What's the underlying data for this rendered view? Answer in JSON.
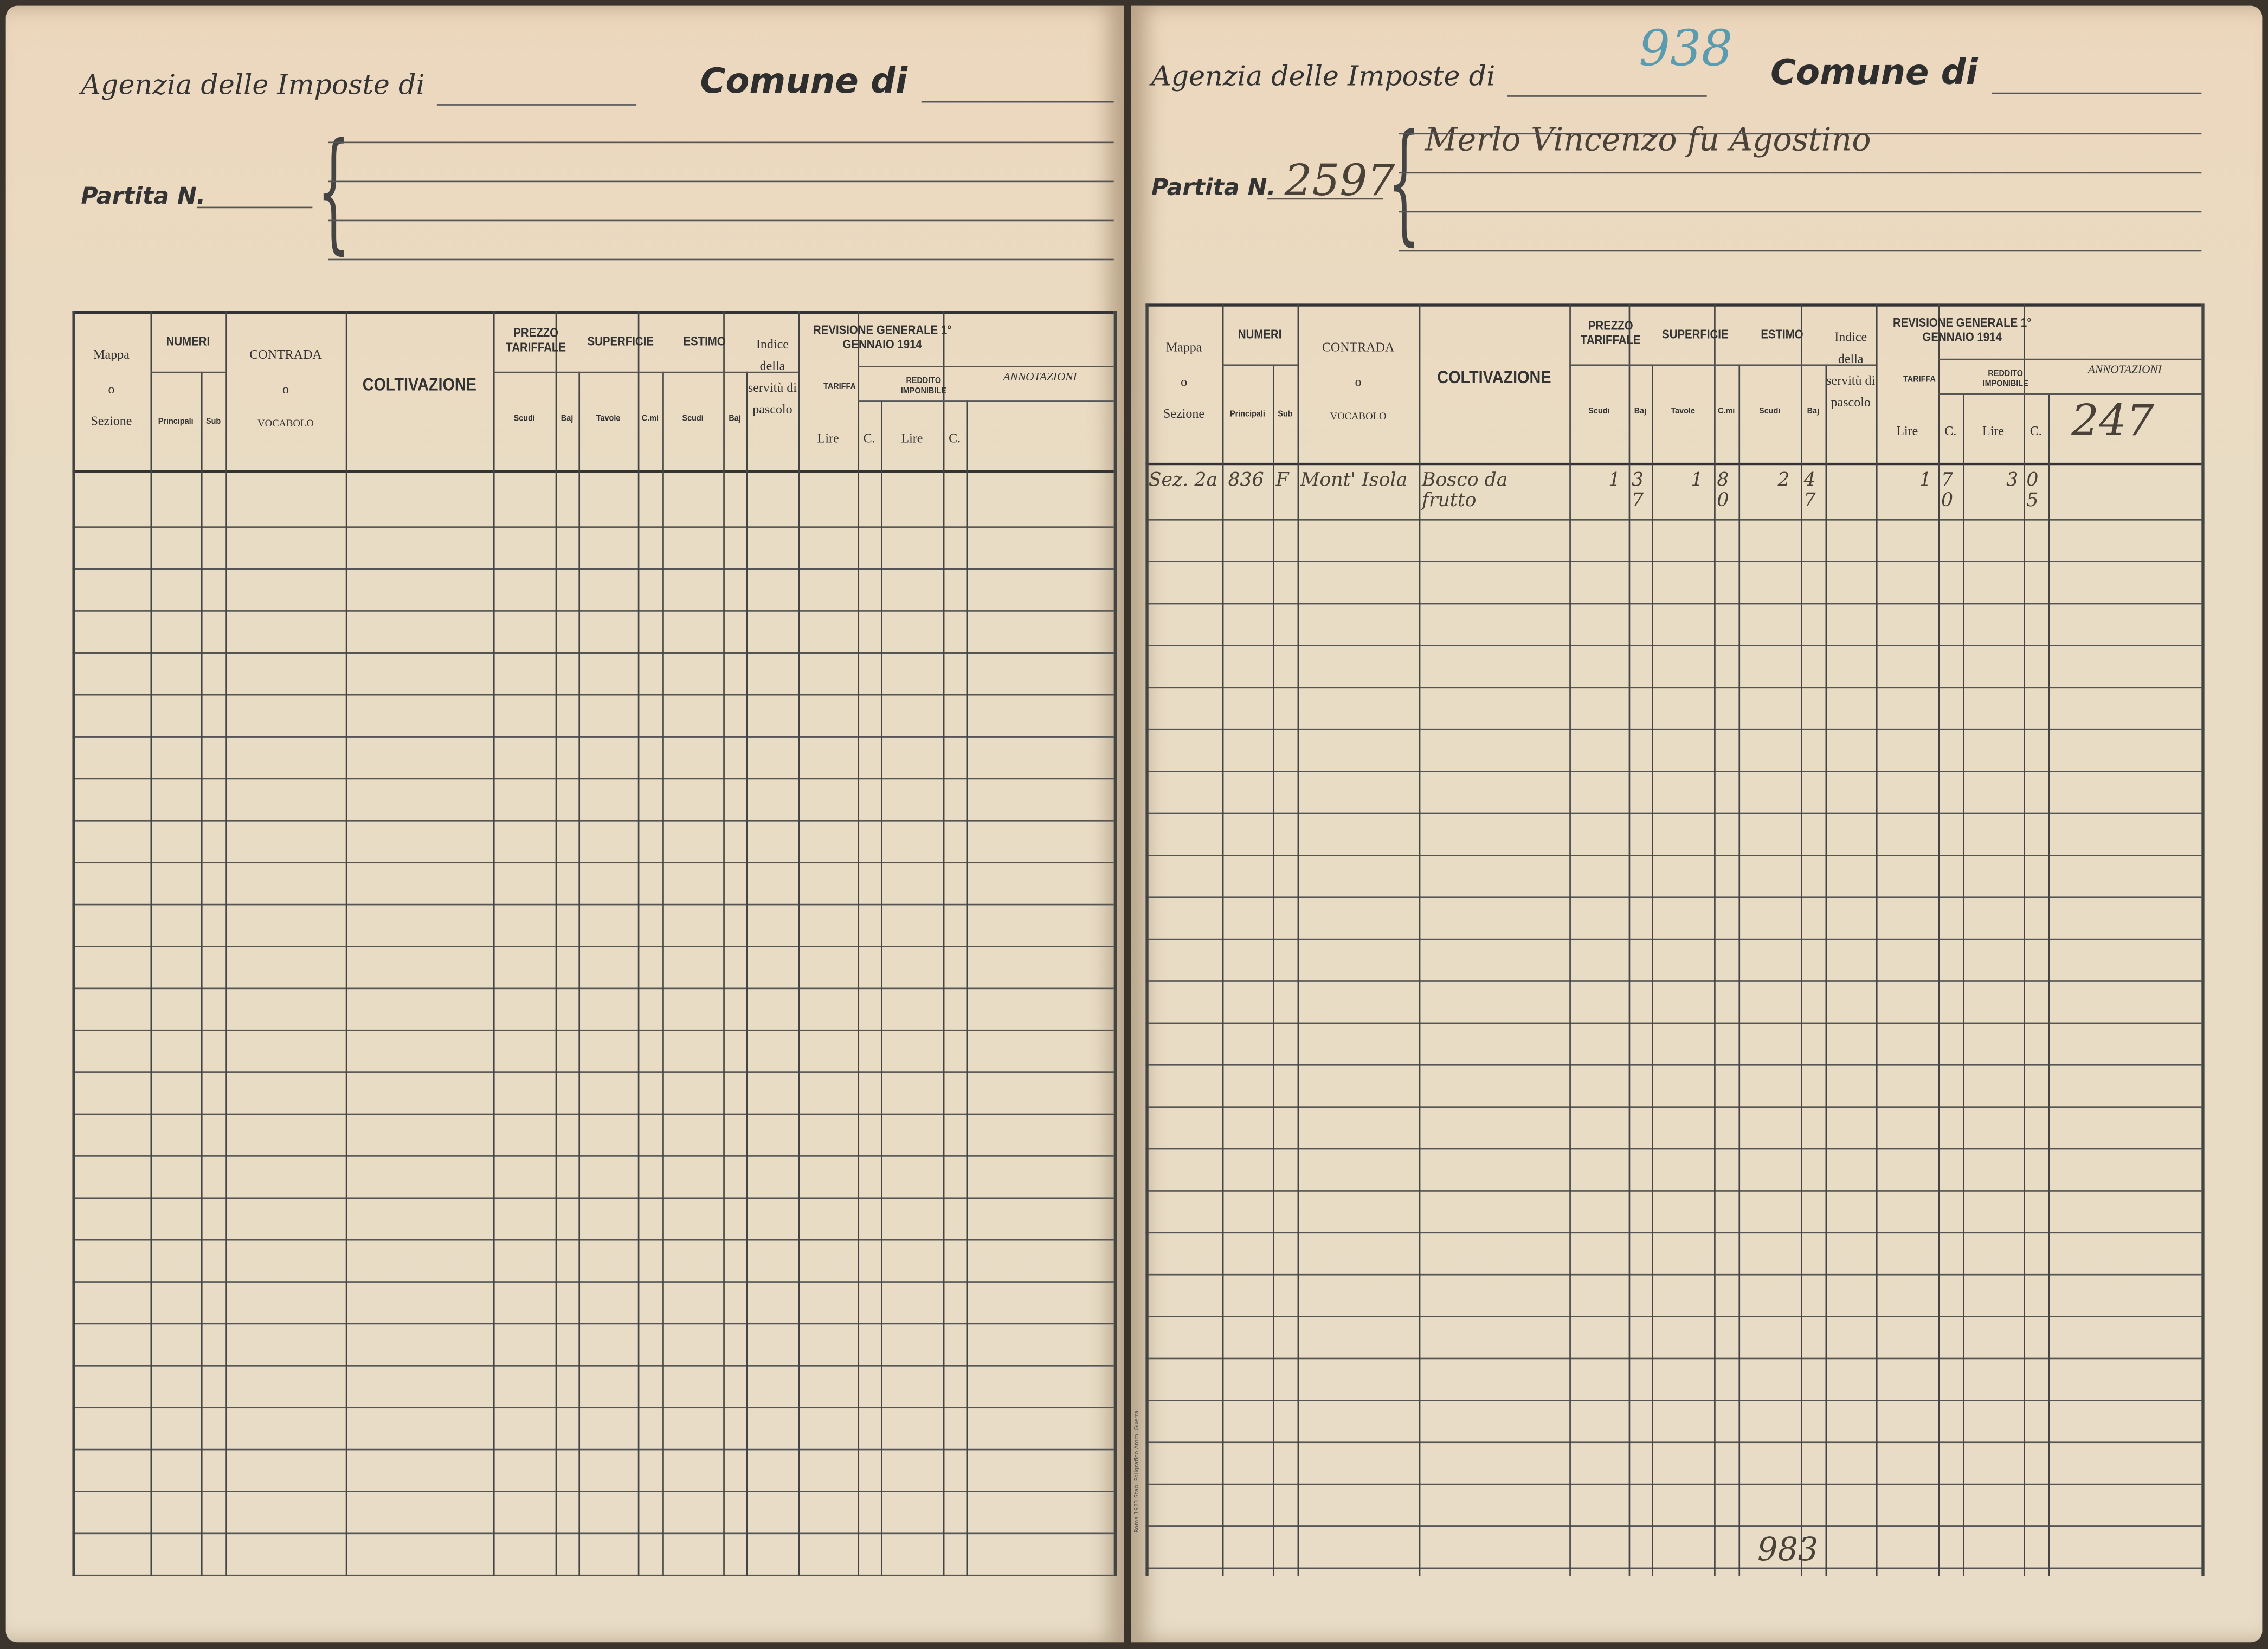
{
  "form": {
    "agenzia_label": "Agenzia delle Imposte di",
    "comune_label": "Comune di",
    "partita_label": "Partita N."
  },
  "table_header": {
    "mappa": "Mappa",
    "o": "o",
    "sezione": "Sezione",
    "numeri": "NUMERI",
    "principali": "Principali",
    "sub": "Sub",
    "contrada": "CONTRADA",
    "vocabolo": "VOCABOLO",
    "coltivazione": "COLTIVAZIONE",
    "prezzo_tariffale": "PREZZO TARIFFALE",
    "superficie": "SUPERFICIE",
    "estimo": "ESTIMO",
    "scudi": "Scudi",
    "baj": "Baj",
    "tavole": "Tavole",
    "cmi": "C.mi",
    "indice": "Indice della servitù di pascolo",
    "revisione": "REVISIONE GENERALE 1° GENNAIO 1914",
    "tariffa": "TARIFFA",
    "reddito": "REDDITO IMPONIBILE",
    "lire": "Lire",
    "c": "C.",
    "annotazioni": "ANNOTAZIONI"
  },
  "left_page": {
    "agenzia_value": "",
    "comune_value": "",
    "partita_value": ""
  },
  "right_page": {
    "agenzia_value": "938",
    "partita_value": "2597",
    "owner": "Merlo Vincenzo fu Agostino",
    "annotazione": "247",
    "rows": [
      {
        "sezione": "Sez. 2a",
        "principali": "836",
        "sub": "F",
        "contrada": "Mont' Isola",
        "coltivazione": "Bosco da frutto",
        "prezzo_scudi": "1",
        "prezzo_baj": "37",
        "sup_tavole": "1",
        "sup_cmi": "80",
        "estimo_scudi": "2",
        "estimo_baj": "47",
        "tariffa_lire": "1",
        "tariffa_c": "70",
        "reddito_lire": "3",
        "reddito_c": "05"
      }
    ],
    "page_number": "983",
    "printer": "Roma 1923 Stab. Poligrafico Amm. Guerra"
  }
}
